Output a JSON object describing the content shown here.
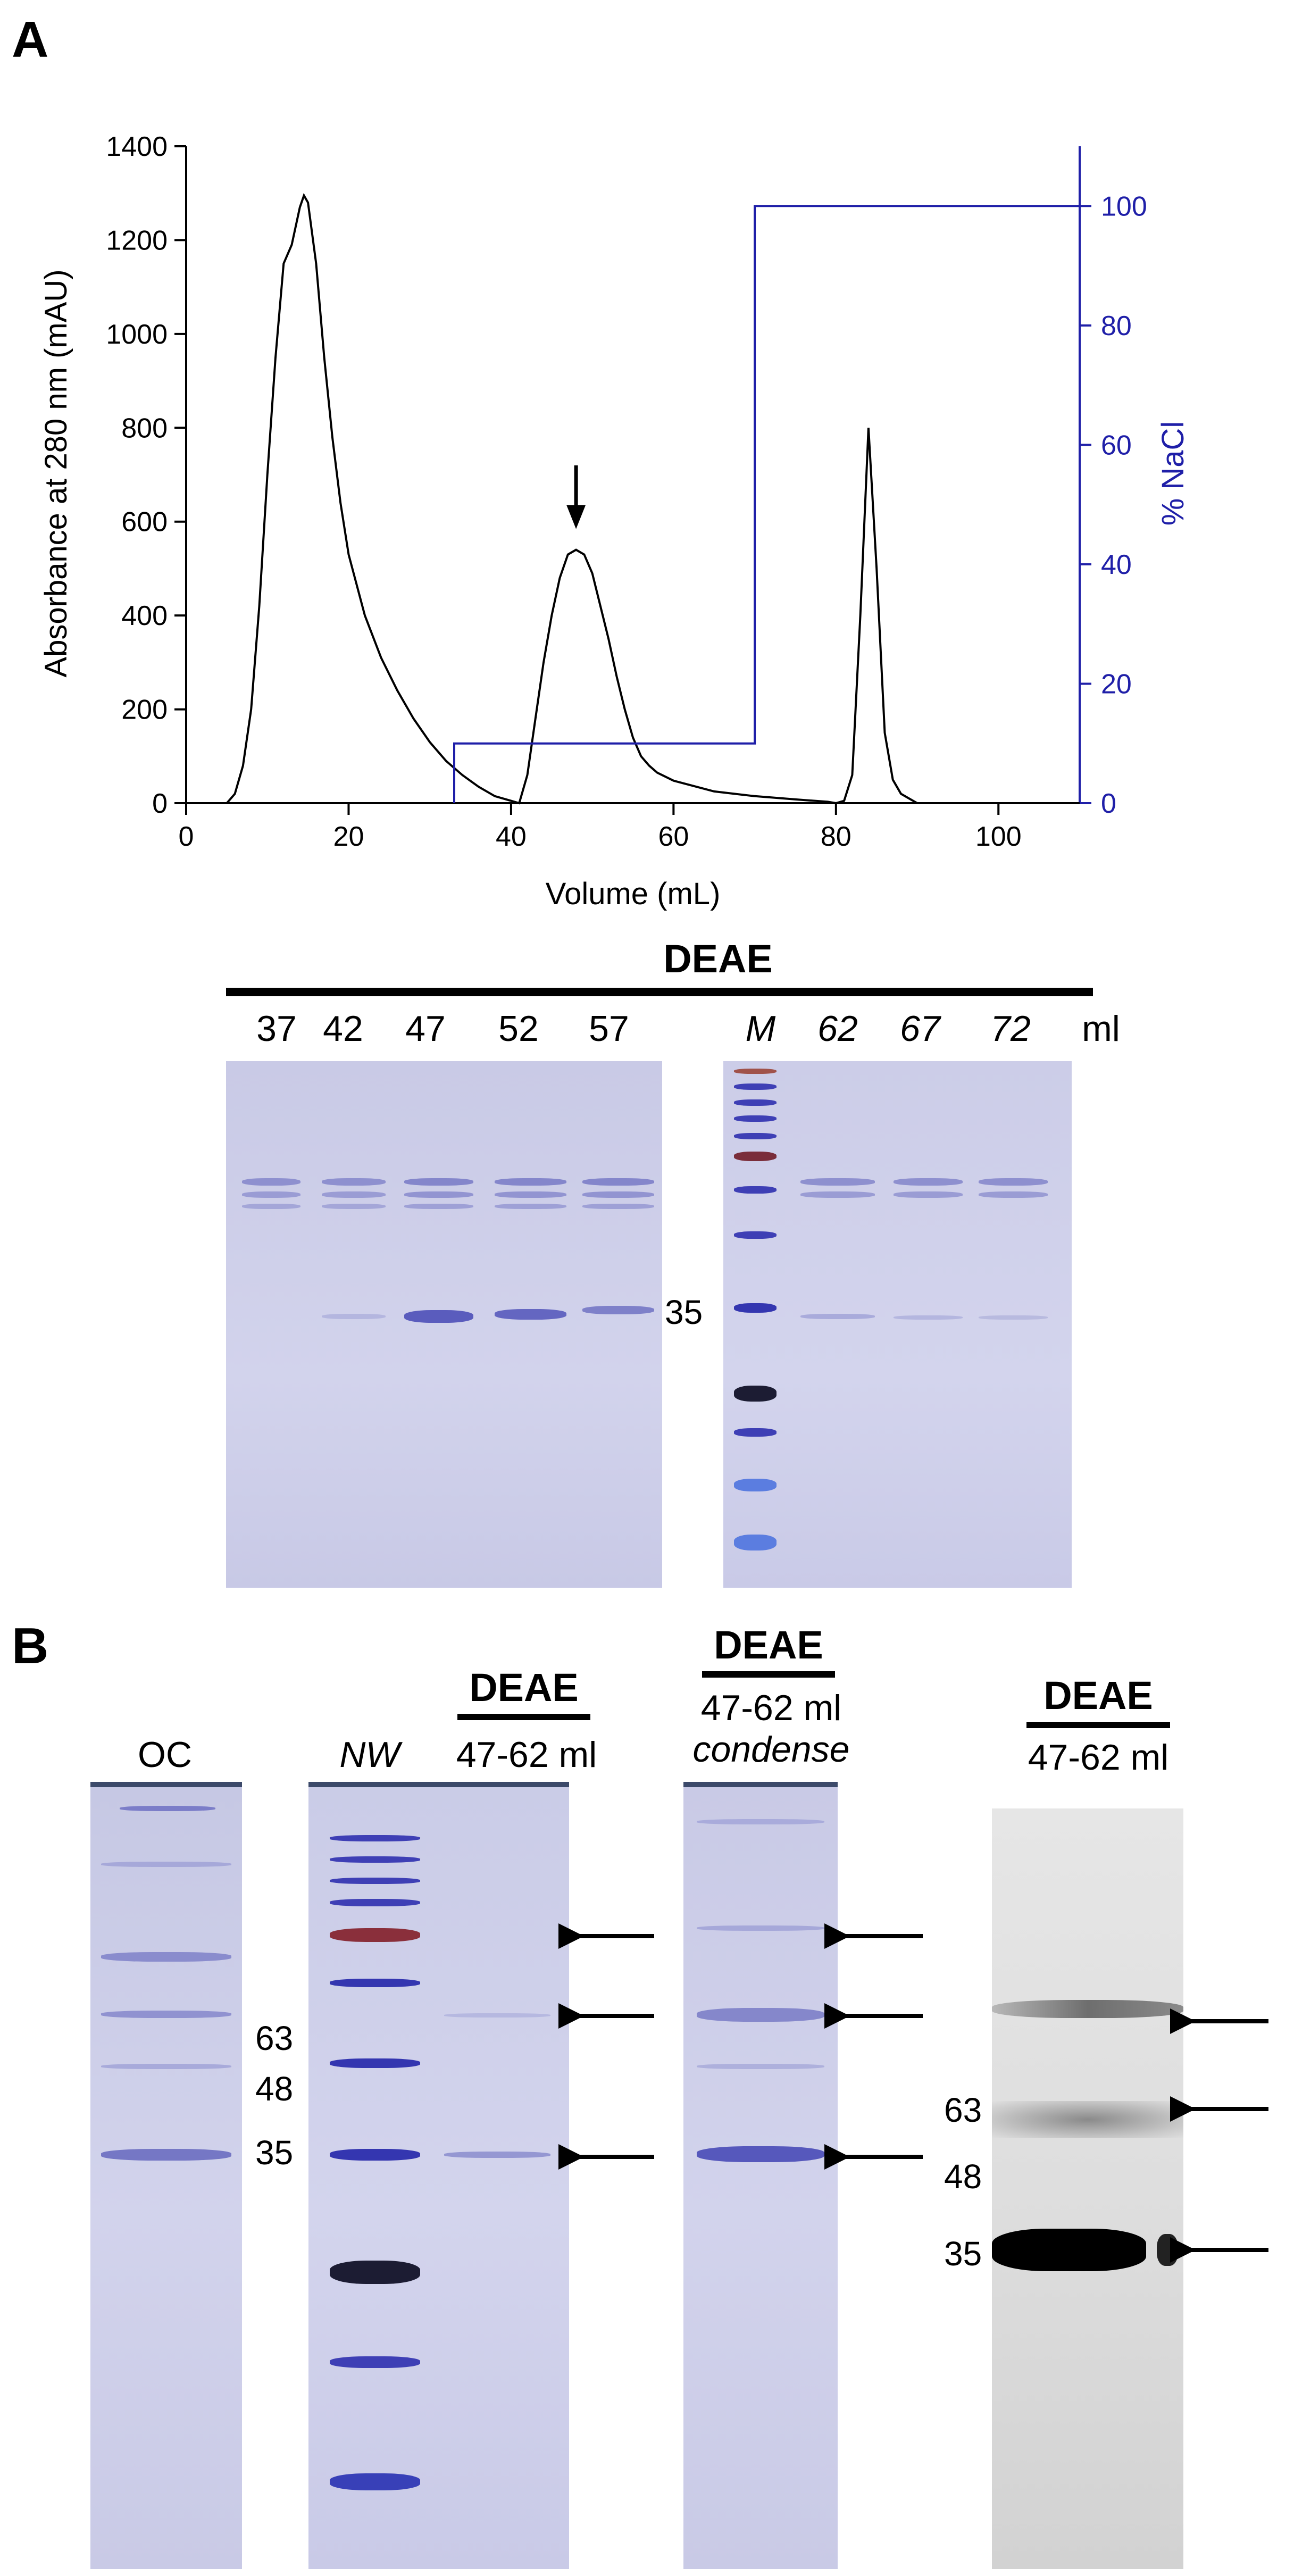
{
  "panel_a": {
    "label": "A",
    "chart_data": {
      "type": "line",
      "xlabel": "Volume (mL)",
      "ylabel": "Absorbance at 280 nm (mAU)",
      "y2label": "% NaCl",
      "xlim": [
        0,
        110
      ],
      "ylim": [
        0,
        1400
      ],
      "y2lim": [
        0,
        110
      ],
      "xticks": [
        "0",
        "20",
        "40",
        "60",
        "80",
        "100"
      ],
      "yticks": [
        "0",
        "200",
        "400",
        "600",
        "800",
        "1000",
        "1200",
        "1400"
      ],
      "y2ticks": [
        "0",
        "20",
        "40",
        "60",
        "80",
        "100"
      ],
      "series": [
        {
          "axis": "left",
          "color": "#000000",
          "points": [
            [
              0,
              0
            ],
            [
              5,
              0
            ],
            [
              6,
              20
            ],
            [
              7,
              80
            ],
            [
              8,
              200
            ],
            [
              9,
              420
            ],
            [
              10,
              700
            ],
            [
              11,
              950
            ],
            [
              12,
              1150
            ],
            [
              13,
              1190
            ],
            [
              14,
              1270
            ],
            [
              14.5,
              1295
            ],
            [
              15,
              1280
            ],
            [
              16,
              1150
            ],
            [
              17,
              950
            ],
            [
              18,
              780
            ],
            [
              19,
              640
            ],
            [
              20,
              530
            ],
            [
              22,
              400
            ],
            [
              24,
              310
            ],
            [
              26,
              240
            ],
            [
              28,
              180
            ],
            [
              30,
              130
            ],
            [
              32,
              90
            ],
            [
              34,
              60
            ],
            [
              36,
              35
            ],
            [
              38,
              15
            ],
            [
              40,
              5
            ],
            [
              41,
              0
            ],
            [
              42,
              60
            ],
            [
              43,
              180
            ],
            [
              44,
              300
            ],
            [
              45,
              400
            ],
            [
              46,
              480
            ],
            [
              47,
              530
            ],
            [
              48,
              540
            ],
            [
              49,
              530
            ],
            [
              50,
              490
            ],
            [
              51,
              420
            ],
            [
              52,
              350
            ],
            [
              53,
              270
            ],
            [
              54,
              200
            ],
            [
              55,
              140
            ],
            [
              56,
              100
            ],
            [
              57,
              80
            ],
            [
              58,
              65
            ],
            [
              60,
              48
            ],
            [
              65,
              25
            ],
            [
              70,
              15
            ],
            [
              75,
              8
            ],
            [
              79,
              3
            ],
            [
              80,
              0
            ],
            [
              81,
              5
            ],
            [
              82,
              60
            ],
            [
              83,
              400
            ],
            [
              84,
              800
            ],
            [
              85,
              500
            ],
            [
              86,
              150
            ],
            [
              87,
              50
            ],
            [
              88,
              20
            ],
            [
              90,
              0
            ],
            [
              110,
              0
            ]
          ]
        },
        {
          "axis": "right",
          "color": "#1f1fa8",
          "points": [
            [
              33,
              0
            ],
            [
              33,
              10
            ],
            [
              70,
              10
            ],
            [
              70,
              100
            ],
            [
              110,
              100
            ]
          ]
        }
      ],
      "annotation": {
        "type": "arrow",
        "x": 48,
        "y_from": 720,
        "y_to": 590
      }
    },
    "gel": {
      "header": "DEAE",
      "unit": "ml",
      "lanes_left": [
        "37",
        "42",
        "47",
        "52",
        "57"
      ],
      "marker_lane": "M",
      "lanes_right": [
        "62",
        "67",
        "72"
      ],
      "mw_label": "35"
    }
  },
  "panel_b": {
    "label": "B",
    "oc_label": "OC",
    "nw_label": "NW",
    "mw_labels_left": [
      "63",
      "48",
      "35"
    ],
    "deae_1": {
      "title": "DEAE",
      "range": "47-62 ml"
    },
    "deae_2": {
      "title": "DEAE",
      "range": "47-62 ml",
      "note": "condense"
    },
    "deae_3": {
      "title": "DEAE",
      "range": "47-62 ml"
    },
    "mw_labels_blot": [
      "63",
      "48",
      "35"
    ]
  }
}
